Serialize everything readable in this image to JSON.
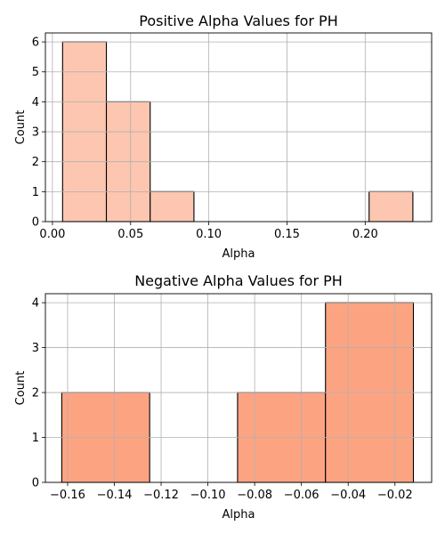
{
  "chart_data": [
    {
      "type": "bar",
      "subtype": "histogram",
      "title": "Positive Alpha Values for PH",
      "xlabel": "Alpha",
      "ylabel": "Count",
      "xlim": [
        -0.0045,
        0.2425
      ],
      "ylim": [
        0,
        6.3
      ],
      "xticks": [
        0.0,
        0.05,
        0.1,
        0.15,
        0.2
      ],
      "xtick_labels": [
        "0.00",
        "0.05",
        "0.10",
        "0.15",
        "0.20"
      ],
      "yticks": [
        0,
        1,
        2,
        3,
        4,
        5,
        6
      ],
      "ytick_labels": [
        "0",
        "1",
        "2",
        "3",
        "4",
        "5",
        "6"
      ],
      "bin_edges": [
        0.0065,
        0.0345,
        0.0625,
        0.0905,
        0.1185,
        0.1465,
        0.1745,
        0.2025,
        0.2305
      ],
      "counts": [
        6,
        4,
        1,
        0,
        0,
        0,
        0,
        1
      ],
      "bar_color": "#fcc6b0",
      "grid": true
    },
    {
      "type": "bar",
      "subtype": "histogram",
      "title": "Negative Alpha Values for PH",
      "xlabel": "Alpha",
      "ylabel": "Count",
      "xlim": [
        -0.1695,
        -0.0043
      ],
      "ylim": [
        0,
        4.2
      ],
      "xticks": [
        -0.16,
        -0.14,
        -0.12,
        -0.1,
        -0.08,
        -0.06,
        -0.04,
        -0.02
      ],
      "xtick_labels": [
        "−0.16",
        "−0.14",
        "−0.12",
        "−0.10",
        "−0.08",
        "−0.06",
        "−0.04",
        "−0.02"
      ],
      "yticks": [
        0,
        1,
        2,
        3,
        4
      ],
      "ytick_labels": [
        "0",
        "1",
        "2",
        "3",
        "4"
      ],
      "bin_edges": [
        -0.1625,
        -0.1249,
        -0.0873,
        -0.0497,
        -0.0121
      ],
      "counts": [
        2,
        0,
        2,
        4
      ],
      "bar_color": "#fca482",
      "grid": true
    }
  ]
}
